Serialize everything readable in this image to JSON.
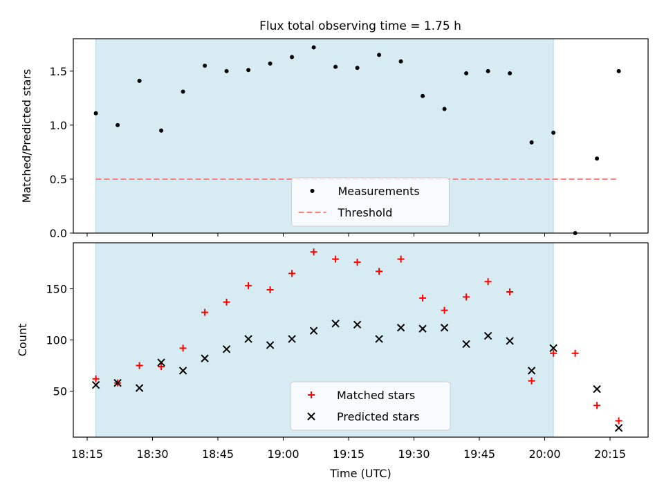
{
  "title": "Flux total observing time = 1.75 h",
  "colors": {
    "band": "#add8e6",
    "measurement": "#000000",
    "threshold": "#ff7f7f",
    "matched": "#ff0000",
    "predicted": "#000000"
  },
  "chart_data": [
    {
      "type": "scatter",
      "ylabel": "Matched/Predicted stars",
      "xlabel": "",
      "ylim": [
        0,
        1.8
      ],
      "yticks": [
        0.0,
        0.5,
        1.0,
        1.5
      ],
      "ytick_labels": [
        "0.0",
        "0.5",
        "1.0",
        "1.5"
      ],
      "shaded_interval": [
        "18:17",
        "20:02"
      ],
      "threshold": {
        "name": "Threshold",
        "value": 0.5,
        "from": "18:17",
        "to": "20:17"
      },
      "legend": [
        "Measurements",
        "Threshold"
      ],
      "legend_position": "lower center",
      "series": [
        {
          "name": "Measurements",
          "x": [
            "18:17",
            "18:22",
            "18:27",
            "18:32",
            "18:37",
            "18:42",
            "18:47",
            "18:52",
            "18:57",
            "19:02",
            "19:07",
            "19:12",
            "19:17",
            "19:22",
            "19:27",
            "19:32",
            "19:37",
            "19:42",
            "19:47",
            "19:52",
            "19:57",
            "20:02",
            "20:07",
            "20:12",
            "20:17"
          ],
          "y": [
            1.11,
            1.0,
            1.41,
            0.95,
            1.31,
            1.55,
            1.5,
            1.51,
            1.57,
            1.63,
            1.72,
            1.54,
            1.53,
            1.65,
            1.59,
            1.27,
            1.15,
            1.48,
            1.5,
            1.48,
            0.84,
            0.93,
            0.0,
            0.69,
            1.5
          ]
        }
      ]
    },
    {
      "type": "scatter",
      "ylabel": "Count",
      "xlabel": "Time (UTC)",
      "ylim": [
        5,
        195
      ],
      "yticks": [
        50,
        100,
        150
      ],
      "xtick_labels": [
        "18:15",
        "18:30",
        "18:45",
        "19:00",
        "19:15",
        "19:30",
        "19:45",
        "20:00",
        "20:15"
      ],
      "shaded_interval": [
        "18:17",
        "20:02"
      ],
      "legend": [
        "Matched stars",
        "Predicted stars"
      ],
      "legend_position": "lower center",
      "series": [
        {
          "name": "Matched stars",
          "x": [
            "18:17",
            "18:22",
            "18:27",
            "18:32",
            "18:37",
            "18:42",
            "18:47",
            "18:52",
            "18:57",
            "19:02",
            "19:07",
            "19:12",
            "19:17",
            "19:22",
            "19:27",
            "19:32",
            "19:37",
            "19:42",
            "19:47",
            "19:52",
            "19:57",
            "20:02",
            "20:07",
            "20:12",
            "20:17"
          ],
          "y": [
            62,
            58,
            75,
            74,
            92,
            127,
            137,
            153,
            149,
            165,
            186,
            179,
            176,
            167,
            179,
            141,
            129,
            142,
            157,
            147,
            60,
            87,
            87,
            36,
            21
          ]
        },
        {
          "name": "Predicted stars",
          "x": [
            "18:17",
            "18:22",
            "18:27",
            "18:32",
            "18:37",
            "18:42",
            "18:47",
            "18:52",
            "18:57",
            "19:02",
            "19:07",
            "19:12",
            "19:17",
            "19:22",
            "19:27",
            "19:32",
            "19:37",
            "19:42",
            "19:47",
            "19:52",
            "19:57",
            "20:02",
            "20:12",
            "20:17"
          ],
          "y": [
            56,
            58,
            53,
            78,
            70,
            82,
            91,
            101,
            95,
            101,
            109,
            116,
            115,
            101,
            112,
            111,
            112,
            96,
            104,
            99,
            70,
            92,
            52,
            14
          ]
        }
      ]
    }
  ]
}
